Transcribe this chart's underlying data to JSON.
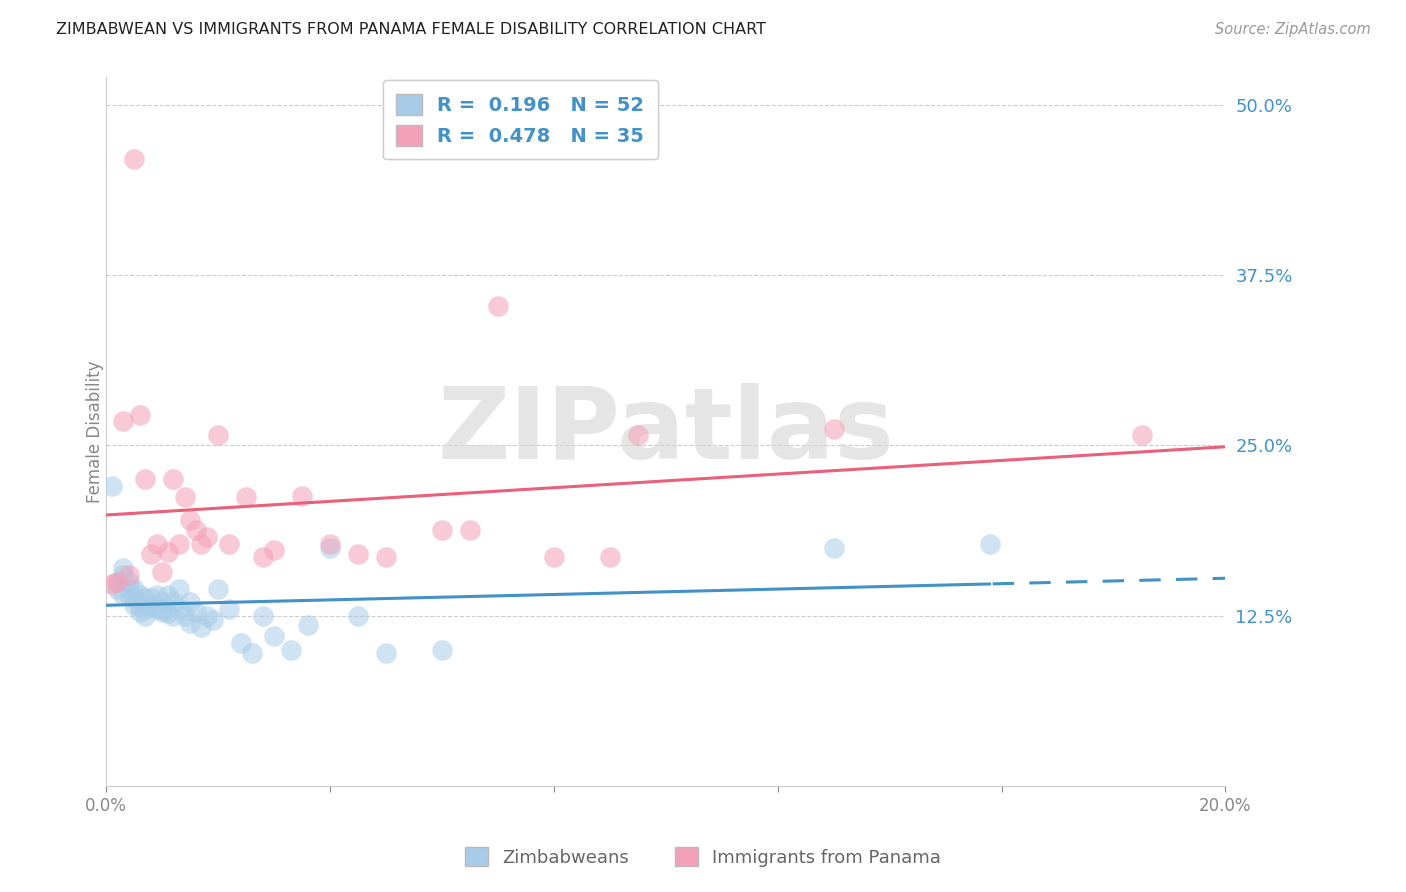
{
  "title": "ZIMBABWEAN VS IMMIGRANTS FROM PANAMA FEMALE DISABILITY CORRELATION CHART",
  "source": "Source: ZipAtlas.com",
  "ylabel": "Female Disability",
  "xlim": [
    0.0,
    0.2
  ],
  "ylim": [
    0.0,
    0.52
  ],
  "yticks": [
    0.125,
    0.25,
    0.375,
    0.5
  ],
  "ytick_labels": [
    "12.5%",
    "25.0%",
    "37.5%",
    "50.0%"
  ],
  "xticks": [
    0.0,
    0.04,
    0.08,
    0.12,
    0.16,
    0.2
  ],
  "xtick_labels_shown": [
    "0.0%",
    "",
    "",
    "",
    "",
    "20.0%"
  ],
  "background_color": "#ffffff",
  "grid_color": "#cccccc",
  "watermark": "ZIPatlas",
  "series": [
    {
      "name": "Zimbabweans",
      "R": 0.196,
      "N": 52,
      "scatter_color": "#a8cce8",
      "line_color": "#4292c6",
      "x": [
        0.001,
        0.002,
        0.002,
        0.003,
        0.003,
        0.003,
        0.004,
        0.004,
        0.004,
        0.005,
        0.005,
        0.005,
        0.006,
        0.006,
        0.006,
        0.007,
        0.007,
        0.007,
        0.008,
        0.008,
        0.009,
        0.009,
        0.01,
        0.01,
        0.01,
        0.011,
        0.011,
        0.012,
        0.012,
        0.013,
        0.013,
        0.014,
        0.015,
        0.015,
        0.016,
        0.017,
        0.018,
        0.019,
        0.02,
        0.022,
        0.024,
        0.026,
        0.028,
        0.03,
        0.033,
        0.036,
        0.04,
        0.045,
        0.05,
        0.06,
        0.13,
        0.158
      ],
      "y": [
        0.22,
        0.15,
        0.145,
        0.16,
        0.155,
        0.14,
        0.15,
        0.14,
        0.145,
        0.138,
        0.145,
        0.133,
        0.14,
        0.132,
        0.128,
        0.138,
        0.13,
        0.125,
        0.132,
        0.138,
        0.13,
        0.14,
        0.135,
        0.128,
        0.13,
        0.14,
        0.127,
        0.135,
        0.125,
        0.145,
        0.13,
        0.125,
        0.135,
        0.12,
        0.128,
        0.117,
        0.125,
        0.122,
        0.145,
        0.13,
        0.105,
        0.098,
        0.125,
        0.11,
        0.1,
        0.118,
        0.175,
        0.125,
        0.098,
        0.1,
        0.175,
        0.178
      ]
    },
    {
      "name": "Immigrants from Panama",
      "R": 0.478,
      "N": 35,
      "scatter_color": "#f4a0b8",
      "line_color": "#e8607a",
      "x": [
        0.001,
        0.002,
        0.003,
        0.004,
        0.005,
        0.006,
        0.007,
        0.008,
        0.009,
        0.01,
        0.011,
        0.012,
        0.013,
        0.014,
        0.015,
        0.016,
        0.017,
        0.018,
        0.02,
        0.022,
        0.025,
        0.028,
        0.03,
        0.035,
        0.04,
        0.045,
        0.05,
        0.06,
        0.065,
        0.07,
        0.08,
        0.09,
        0.095,
        0.13,
        0.185
      ],
      "y": [
        0.148,
        0.15,
        0.268,
        0.155,
        0.46,
        0.272,
        0.225,
        0.17,
        0.178,
        0.157,
        0.172,
        0.225,
        0.178,
        0.212,
        0.195,
        0.188,
        0.178,
        0.183,
        0.258,
        0.178,
        0.212,
        0.168,
        0.173,
        0.213,
        0.178,
        0.17,
        0.168,
        0.188,
        0.188,
        0.352,
        0.168,
        0.168,
        0.258,
        0.262,
        0.258
      ]
    }
  ]
}
